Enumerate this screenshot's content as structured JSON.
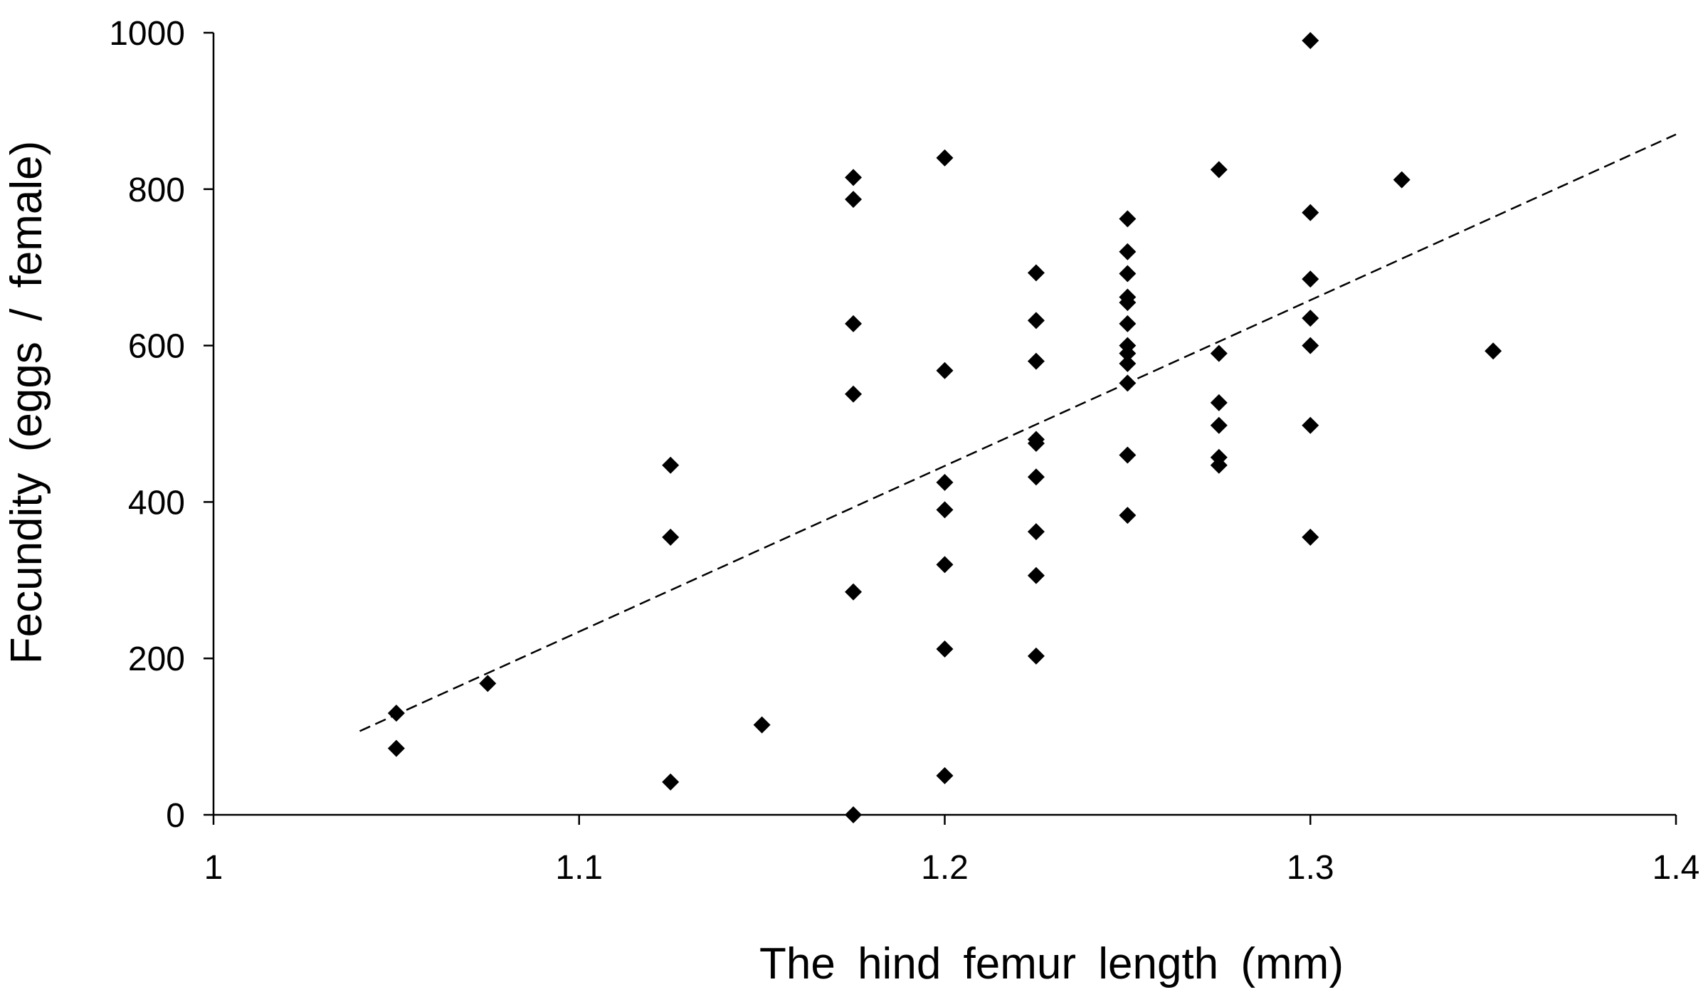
{
  "chart_data": {
    "type": "scatter",
    "title": "",
    "xlabel": "The hind femur length (mm)",
    "ylabel": "Fecundity (eggs / female)",
    "xlim": [
      1,
      1.4
    ],
    "ylim": [
      0,
      1000
    ],
    "xticks": [
      1,
      1.1,
      1.2,
      1.3,
      1.4
    ],
    "xtick_labels": [
      "1",
      "1.1",
      "1.2",
      "1.3",
      "1.4"
    ],
    "yticks": [
      0,
      200,
      400,
      600,
      800,
      1000
    ],
    "ytick_labels": [
      "0",
      "200",
      "400",
      "600",
      "800",
      "1000"
    ],
    "grid": false,
    "marker": "diamond",
    "series": [
      {
        "points": [
          [
            1.05,
            130
          ],
          [
            1.05,
            85
          ],
          [
            1.075,
            168
          ],
          [
            1.125,
            447
          ],
          [
            1.125,
            355
          ],
          [
            1.125,
            42
          ],
          [
            1.15,
            115
          ],
          [
            1.175,
            815
          ],
          [
            1.175,
            787
          ],
          [
            1.175,
            628
          ],
          [
            1.175,
            538
          ],
          [
            1.175,
            285
          ],
          [
            1.175,
            0
          ],
          [
            1.2,
            840
          ],
          [
            1.2,
            568
          ],
          [
            1.2,
            425
          ],
          [
            1.2,
            390
          ],
          [
            1.2,
            320
          ],
          [
            1.2,
            212
          ],
          [
            1.2,
            50
          ],
          [
            1.225,
            693
          ],
          [
            1.225,
            632
          ],
          [
            1.225,
            580
          ],
          [
            1.225,
            480
          ],
          [
            1.225,
            475
          ],
          [
            1.225,
            432
          ],
          [
            1.225,
            362
          ],
          [
            1.225,
            306
          ],
          [
            1.225,
            203
          ],
          [
            1.25,
            762
          ],
          [
            1.25,
            720
          ],
          [
            1.25,
            692
          ],
          [
            1.25,
            662
          ],
          [
            1.25,
            655
          ],
          [
            1.25,
            628
          ],
          [
            1.25,
            600
          ],
          [
            1.25,
            590
          ],
          [
            1.25,
            577
          ],
          [
            1.25,
            552
          ],
          [
            1.25,
            460
          ],
          [
            1.25,
            383
          ],
          [
            1.275,
            825
          ],
          [
            1.275,
            590
          ],
          [
            1.275,
            527
          ],
          [
            1.275,
            498
          ],
          [
            1.275,
            457
          ],
          [
            1.275,
            447
          ],
          [
            1.3,
            990
          ],
          [
            1.3,
            770
          ],
          [
            1.3,
            685
          ],
          [
            1.3,
            635
          ],
          [
            1.3,
            600
          ],
          [
            1.3,
            498
          ],
          [
            1.3,
            355
          ],
          [
            1.325,
            812
          ],
          [
            1.35,
            593
          ]
        ]
      }
    ],
    "trendline": {
      "style": "dashed",
      "x": [
        1.04,
        1.4
      ],
      "y": [
        107,
        870
      ]
    }
  }
}
